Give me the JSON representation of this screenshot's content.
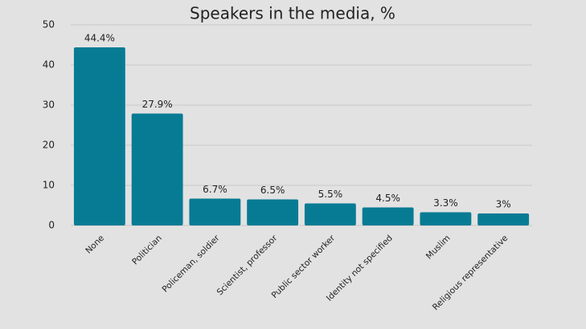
{
  "chart_data": {
    "type": "bar",
    "title": "Speakers in the media, %",
    "categories": [
      "None",
      "Politician",
      "Policeman, soldier",
      "Scientist, professor",
      "Public sector worker",
      "Identity not specified",
      "Muslim",
      "Religious representative"
    ],
    "values": [
      44.4,
      27.9,
      6.7,
      6.5,
      5.5,
      4.5,
      3.3,
      3
    ],
    "value_labels": [
      "44.4%",
      "27.9%",
      "6.7%",
      "6.5%",
      "5.5%",
      "4.5%",
      "3.3%",
      "3%"
    ],
    "color": "#087b94",
    "ylim": [
      0,
      50
    ],
    "yticks": [
      0,
      10,
      20,
      30,
      40,
      50
    ],
    "grid": true
  }
}
